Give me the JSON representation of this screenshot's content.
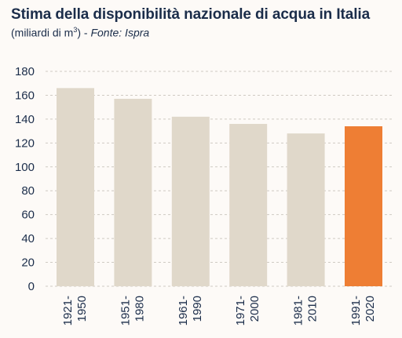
{
  "header": {
    "title": "Stima della disponibilità nazionale di acqua in Italia",
    "subtitle_prefix": "(miliardi di m",
    "subtitle_sup": "3",
    "subtitle_suffix": ") - ",
    "subtitle_source": "Fonte: Ispra"
  },
  "chart_data": {
    "type": "bar",
    "title": "Stima della disponibilità nazionale di acqua in Italia",
    "subtitle": "(miliardi di m³) - Fonte: Ispra",
    "xlabel": "",
    "ylabel": "",
    "categories": [
      [
        "1921-",
        "1950"
      ],
      [
        "1951-",
        "1980"
      ],
      [
        "1961-",
        "1990"
      ],
      [
        "1971-",
        "2000"
      ],
      [
        "1981-",
        "2010"
      ],
      [
        "1991-",
        "2020"
      ]
    ],
    "values": [
      166,
      157,
      142,
      136,
      128,
      134
    ],
    "highlight_index": 5,
    "ylim": [
      0,
      180
    ],
    "yticks": [
      0,
      20,
      40,
      60,
      80,
      100,
      120,
      140,
      160,
      180
    ],
    "grid": true,
    "legend": "none",
    "colors": {
      "bar": "#e0d8ca",
      "highlight": "#ee7e34",
      "grid": "#cfcac3",
      "text": "#1b2d4a",
      "background": "#fdfaf7"
    }
  }
}
